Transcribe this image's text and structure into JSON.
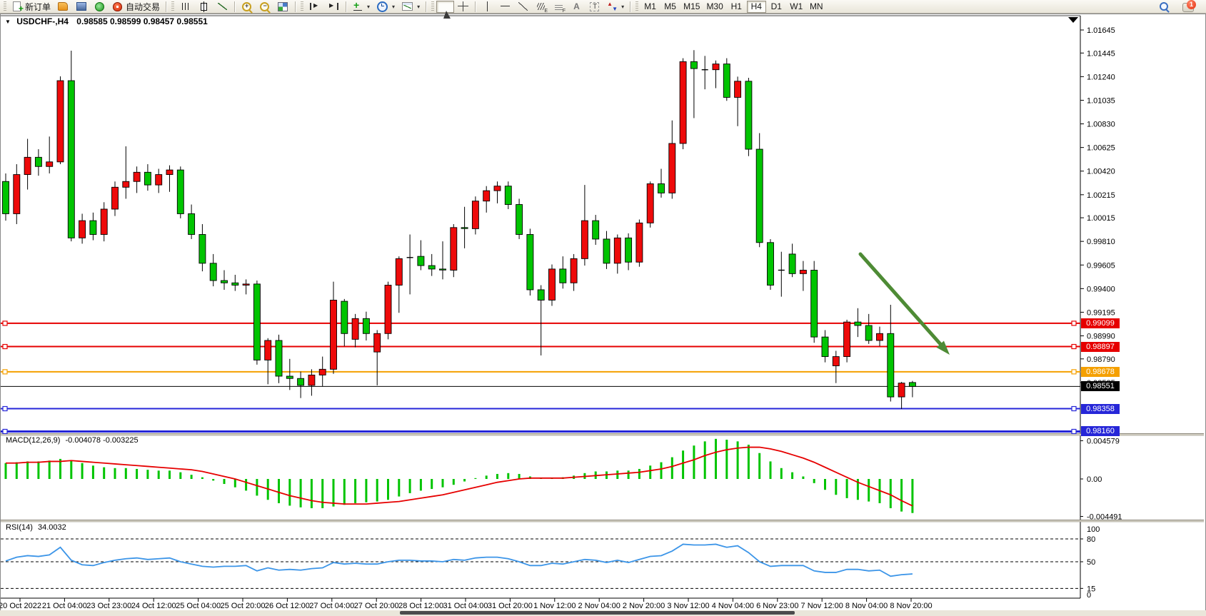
{
  "toolbar": {
    "new_order_label": "新订单",
    "autotrade_label": "自动交易",
    "timeframes": [
      "M1",
      "M5",
      "M15",
      "M30",
      "H1",
      "H4",
      "D1",
      "W1",
      "MN"
    ],
    "active_timeframe": "H4",
    "notification_badge": "1"
  },
  "chart": {
    "title": "USDCHF-,H4",
    "ohlc_text": "0.98585 0.98599 0.98457 0.98551",
    "price_axis": [
      "1.01645",
      "1.01445",
      "1.01240",
      "1.01035",
      "1.00830",
      "1.00625",
      "1.00420",
      "1.00215",
      "1.00015",
      "0.99810",
      "0.99605",
      "0.99400",
      "0.99195",
      "0.98990",
      "0.98790",
      "0.98585"
    ],
    "lines": [
      {
        "price": 0.99099,
        "label": "0.99099",
        "color": "#e60000",
        "lw": 2
      },
      {
        "price": 0.98897,
        "label": "0.98897",
        "color": "#e60000",
        "lw": 2
      },
      {
        "price": 0.98678,
        "label": "0.98678",
        "color": "#f5a000",
        "lw": 2
      },
      {
        "price": 0.98358,
        "label": "0.98358",
        "color": "#2626d8",
        "lw": 2
      },
      {
        "price": 0.9816,
        "label": "0.98160",
        "color": "#2626d8",
        "lw": 3
      }
    ],
    "bid": {
      "price": 0.98551,
      "label": "0.98551",
      "color": "#000000"
    },
    "time_labels": [
      "20 Oct 2022",
      "21 Oct 04:00",
      "23 Oct 23:00",
      "24 Oct 12:00",
      "25 Oct 04:00",
      "25 Oct 20:00",
      "26 Oct 12:00",
      "27 Oct 04:00",
      "27 Oct 20:00",
      "28 Oct 12:00",
      "31 Oct 04:00",
      "31 Oct 20:00",
      "1 Nov 12:00",
      "2 Nov 04:00",
      "2 Nov 20:00",
      "3 Nov 12:00",
      "4 Nov 04:00",
      "6 Nov 23:00",
      "7 Nov 12:00",
      "8 Nov 04:00",
      "8 Nov 20:00"
    ],
    "arrow_color": "#4e8b35"
  },
  "macd_panel": {
    "label": "MACD(12,26,9)",
    "values": "-0.004078 -0.003225",
    "axis": [
      "0.004579",
      "0.00",
      "-0.004491"
    ]
  },
  "rsi_panel": {
    "label": "RSI(14)",
    "value": "34.0032",
    "levels": [
      100,
      80,
      50,
      15,
      0
    ]
  },
  "chart_data": {
    "type": "candlestick",
    "symbol": "USDCHF-",
    "timeframe": "H4",
    "title": "USDCHF-,H4 0.98585 0.98599 0.98457 0.98551",
    "ylim": [
      0.98113,
      1.01769
    ],
    "colors": {
      "up": "#ee0a0a",
      "down": "#00c400",
      "macd_hist": "#00c400",
      "macd_signal": "#e60000",
      "rsi": "#3c95e8"
    },
    "candles": [
      [
        1.0033,
        1.004,
        0.9999,
        1.0005
      ],
      [
        1.0005,
        1.0048,
        0.9996,
        1.0039
      ],
      [
        1.0039,
        1.007,
        1.0026,
        1.0054
      ],
      [
        1.0054,
        1.0061,
        1.0038,
        1.0046
      ],
      [
        1.0046,
        1.0072,
        1.004,
        1.005
      ],
      [
        1.005,
        1.01242,
        1.0048,
        1.01205
      ],
      [
        1.01205,
        1.01465,
        0.9981,
        0.9984
      ],
      [
        0.9984,
        1.0005,
        0.9979,
        0.9999
      ],
      [
        0.9999,
        1.0006,
        0.9982,
        0.9987
      ],
      [
        0.9987,
        1.0015,
        0.9981,
        1.0009
      ],
      [
        1.0009,
        1.0033,
        1.0003,
        1.0028
      ],
      [
        1.0028,
        1.00635,
        1.0018,
        1.0033
      ],
      [
        1.0033,
        1.0046,
        1.0023,
        1.0041
      ],
      [
        1.0041,
        1.0048,
        1.0025,
        1.003
      ],
      [
        1.003,
        1.0044,
        1.0023,
        1.0039
      ],
      [
        1.0039,
        1.0047,
        1.0024,
        1.0043
      ],
      [
        1.0043,
        1.0046,
        1.0001,
        1.0005
      ],
      [
        1.0005,
        1.0013,
        0.9983,
        0.9987
      ],
      [
        0.9987,
        0.9996,
        0.9955,
        0.9962
      ],
      [
        0.9962,
        0.997,
        0.9942,
        0.9947
      ],
      [
        0.9947,
        0.9956,
        0.9939,
        0.9945
      ],
      [
        0.9945,
        0.9952,
        0.9938,
        0.9943
      ],
      [
        0.9943,
        0.9948,
        0.9935,
        0.9944
      ],
      [
        0.9944,
        0.9947,
        0.9874,
        0.9878
      ],
      [
        0.9878,
        0.9897,
        0.9857,
        0.9895
      ],
      [
        0.9895,
        0.99,
        0.9858,
        0.9864
      ],
      [
        0.9864,
        0.9879,
        0.9852,
        0.9862
      ],
      [
        0.9862,
        0.9868,
        0.9845,
        0.9856
      ],
      [
        0.9856,
        0.987,
        0.9847,
        0.9865
      ],
      [
        0.9865,
        0.9881,
        0.9855,
        0.987
      ],
      [
        0.987,
        0.9946,
        0.9866,
        0.993
      ],
      [
        0.9929,
        0.9931,
        0.989,
        0.9901
      ],
      [
        0.9896,
        0.9918,
        0.9889,
        0.9914
      ],
      [
        0.9914,
        0.992,
        0.9895,
        0.9901
      ],
      [
        0.9885,
        0.9904,
        0.9856,
        0.9901
      ],
      [
        0.9901,
        0.9946,
        0.9896,
        0.9943
      ],
      [
        0.9943,
        0.9968,
        0.9919,
        0.9966
      ],
      [
        0.9967,
        0.9987,
        0.9935,
        0.9967
      ],
      [
        0.9968,
        0.9982,
        0.9956,
        0.996
      ],
      [
        0.996,
        0.997,
        0.9951,
        0.9957
      ],
      [
        0.9957,
        0.9981,
        0.9948,
        0.99562
      ],
      [
        0.9956,
        0.9996,
        0.995,
        0.9993
      ],
      [
        0.9993,
        1.0011,
        0.9975,
        0.99922
      ],
      [
        0.9992,
        1.002,
        0.9987,
        1.0016
      ],
      [
        1.0016,
        1.0029,
        1.0006,
        1.0025
      ],
      [
        1.0025,
        1.0033,
        1.0014,
        1.0029
      ],
      [
        1.0029,
        1.0033,
        1.0009,
        1.0013
      ],
      [
        1.0013,
        1.0018,
        0.9983,
        0.9987
      ],
      [
        0.9987,
        0.9992,
        0.9934,
        0.9939
      ],
      [
        0.9939,
        0.9943,
        0.9882,
        0.993
      ],
      [
        0.993,
        0.9961,
        0.9925,
        0.9957
      ],
      [
        0.9957,
        0.9968,
        0.994,
        0.9945
      ],
      [
        0.9945,
        0.997,
        0.9938,
        0.9966
      ],
      [
        0.9966,
        1.003,
        0.996,
        0.9999
      ],
      [
        0.9999,
        1.0004,
        0.9978,
        0.9983
      ],
      [
        0.9983,
        0.999,
        0.9957,
        0.9962
      ],
      [
        0.9962,
        0.9987,
        0.9953,
        0.9984
      ],
      [
        0.9984,
        0.9988,
        0.9956,
        0.9963
      ],
      [
        0.9963,
        1.0,
        0.9959,
        0.9997
      ],
      [
        0.9997,
        1.0033,
        0.9993,
        1.0031
      ],
      [
        1.0031,
        1.0044,
        1.0019,
        1.0023
      ],
      [
        1.0023,
        1.0086,
        1.0018,
        1.0066
      ],
      [
        1.0066,
        1.014,
        1.0061,
        1.0137
      ],
      [
        1.0137,
        1.0147,
        1.0088,
        1.0131
      ],
      [
        1.013,
        1.0142,
        1.0113,
        1.013
      ],
      [
        1.013,
        1.0138,
        1.0114,
        1.0135
      ],
      [
        1.0135,
        1.014,
        1.0103,
        1.0106
      ],
      [
        1.0106,
        1.0124,
        1.0081,
        1.012
      ],
      [
        1.012,
        1.0123,
        1.0055,
        1.0061
      ],
      [
        1.0061,
        1.0075,
        0.9976,
        0.998
      ],
      [
        0.998,
        0.9983,
        0.9939,
        0.9943
      ],
      [
        0.9956,
        0.9972,
        0.9933,
        0.9956
      ],
      [
        0.997,
        0.9979,
        0.995,
        0.9953
      ],
      [
        0.9953,
        0.9964,
        0.9938,
        0.9956
      ],
      [
        0.9956,
        0.9964,
        0.9893,
        0.9898
      ],
      [
        0.9898,
        0.9904,
        0.9876,
        0.9881
      ],
      [
        0.9873,
        0.9886,
        0.9858,
        0.9881
      ],
      [
        0.9881,
        0.9913,
        0.9876,
        0.9911
      ],
      [
        0.9911,
        0.9923,
        0.9898,
        0.9908
      ],
      [
        0.9908,
        0.9918,
        0.9892,
        0.9895
      ],
      [
        0.9895,
        0.9907,
        0.989,
        0.9901
      ],
      [
        0.9901,
        0.9926,
        0.9842,
        0.9846
      ],
      [
        0.9846,
        0.9859,
        0.98355,
        0.9858
      ],
      [
        0.98585,
        0.98599,
        0.98457,
        0.98551
      ]
    ],
    "macd": {
      "main": [
        0.0019,
        0.002,
        0.0021,
        0.0021,
        0.0022,
        0.0024,
        0.0022,
        0.0019,
        0.0016,
        0.0014,
        0.0013,
        0.0013,
        0.0012,
        0.0011,
        0.001,
        0.001,
        0.0008,
        0.0005,
        0.0002,
        -0.0002,
        -0.0006,
        -0.001,
        -0.0014,
        -0.002,
        -0.0025,
        -0.0029,
        -0.0032,
        -0.0034,
        -0.0035,
        -0.0035,
        -0.0033,
        -0.0031,
        -0.0029,
        -0.0028,
        -0.0027,
        -0.0025,
        -0.0021,
        -0.0017,
        -0.0014,
        -0.0012,
        -0.001,
        -0.0007,
        -0.0003,
        0.0001,
        0.0004,
        0.0006,
        0.0007,
        0.0006,
        0.0003,
        0.0001,
        0.0001,
        0.0002,
        0.0004,
        0.0007,
        0.0009,
        0.0009,
        0.001,
        0.001,
        0.0012,
        0.0016,
        0.002,
        0.0026,
        0.0034,
        0.004,
        0.0045,
        0.0048,
        0.0047,
        0.0045,
        0.0041,
        0.0031,
        0.0021,
        0.0013,
        0.0008,
        0.0003,
        -0.0005,
        -0.0013,
        -0.0019,
        -0.0023,
        -0.0025,
        -0.0027,
        -0.0029,
        -0.0035,
        -0.0039,
        -0.004078
      ],
      "signal": [
        0.0019,
        0.0019,
        0.002,
        0.002,
        0.0021,
        0.0021,
        0.0022,
        0.0021,
        0.002,
        0.0019,
        0.0018,
        0.0017,
        0.0016,
        0.0015,
        0.0014,
        0.0013,
        0.0012,
        0.0011,
        0.0009,
        0.0006,
        0.0003,
        0.0,
        -0.0004,
        -0.0008,
        -0.0012,
        -0.0016,
        -0.002,
        -0.0023,
        -0.0026,
        -0.0028,
        -0.0029,
        -0.003,
        -0.003,
        -0.003,
        -0.0029,
        -0.0028,
        -0.0027,
        -0.0025,
        -0.0023,
        -0.0021,
        -0.0019,
        -0.0016,
        -0.0013,
        -0.001,
        -0.0007,
        -0.0004,
        -0.0002,
        0.0,
        0.0001,
        0.0001,
        0.0001,
        0.0001,
        0.0002,
        0.0003,
        0.0004,
        0.0005,
        0.0006,
        0.0007,
        0.0008,
        0.001,
        0.0012,
        0.0015,
        0.0019,
        0.0023,
        0.0028,
        0.0032,
        0.0035,
        0.0037,
        0.0038,
        0.0038,
        0.0036,
        0.0033,
        0.0029,
        0.0025,
        0.002,
        0.0014,
        0.0008,
        0.0002,
        -0.0004,
        -0.0009,
        -0.0014,
        -0.0019,
        -0.0026,
        -0.003225
      ]
    },
    "rsi": [
      51,
      56,
      58,
      57,
      59,
      69,
      52,
      46,
      45,
      49,
      52,
      54,
      55,
      53,
      54,
      55,
      50,
      47,
      44,
      43,
      44,
      44,
      45,
      38,
      42,
      39,
      40,
      39,
      41,
      42,
      49,
      47,
      48,
      47,
      47,
      50,
      52,
      52,
      51,
      51,
      50,
      53,
      52,
      55,
      56,
      56,
      54,
      50,
      45,
      45,
      48,
      47,
      50,
      53,
      52,
      49,
      52,
      49,
      53,
      57,
      58,
      64,
      73,
      72,
      72,
      73,
      69,
      71,
      62,
      50,
      44,
      45,
      45,
      45,
      38,
      36,
      36,
      40,
      40,
      38,
      39,
      31,
      33,
      34
    ]
  }
}
